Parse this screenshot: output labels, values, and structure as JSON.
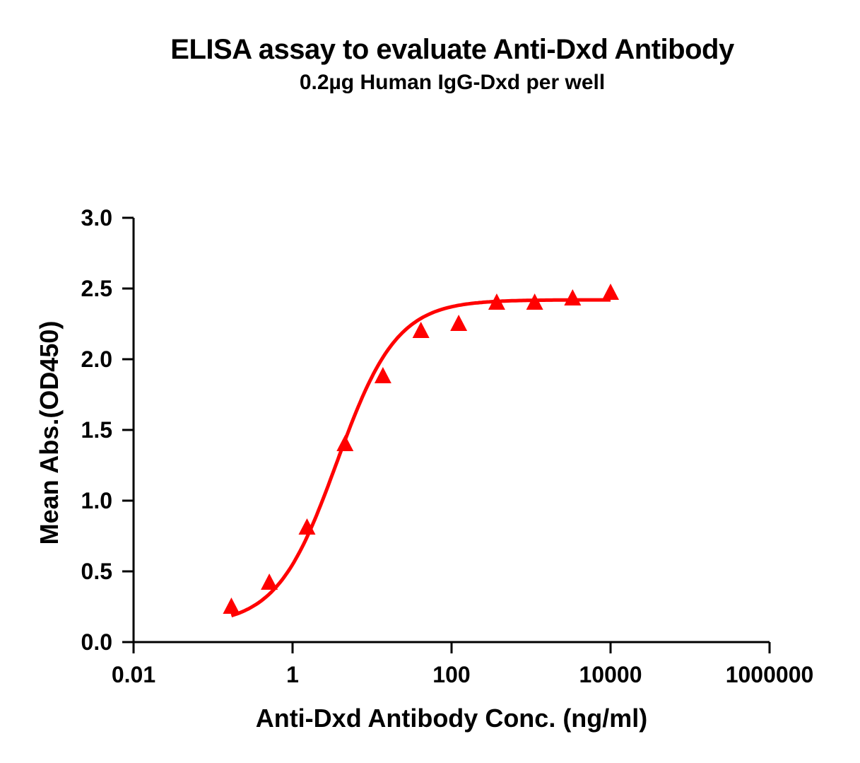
{
  "chart_data": {
    "type": "scatter",
    "title": "ELISA assay to evaluate Anti-Dxd Antibody",
    "subtitle": "0.2µg Human IgG-Dxd per well",
    "xlabel": "Anti-Dxd Antibody Conc. (ng/ml)",
    "ylabel": "Mean Abs.(OD450)",
    "xscale": "log",
    "xlim": [
      0.01,
      1000000
    ],
    "ylim": [
      0.0,
      3.0
    ],
    "xticks": [
      "0.01",
      "1",
      "100",
      "10000",
      "1000000"
    ],
    "yticks": [
      "0.0",
      "0.5",
      "1.0",
      "1.5",
      "2.0",
      "2.5",
      "3.0"
    ],
    "grid": false,
    "legend": null,
    "series": [
      {
        "name": "Anti-Dxd Antibody",
        "color": "#ff0000",
        "marker": "triangle",
        "fit": "4PL sigmoidal curve",
        "x": [
          0.17,
          0.51,
          1.52,
          4.57,
          13.7,
          41.2,
          123,
          370,
          1111,
          3333,
          10000
        ],
        "y": [
          0.25,
          0.42,
          0.81,
          1.4,
          1.88,
          2.2,
          2.25,
          2.4,
          2.4,
          2.43,
          2.47
        ]
      }
    ]
  }
}
